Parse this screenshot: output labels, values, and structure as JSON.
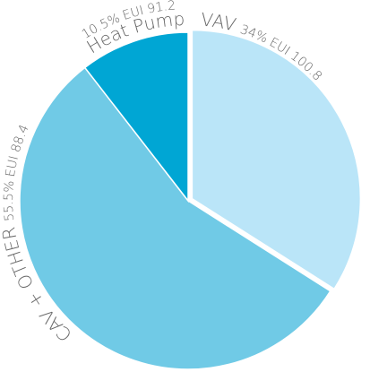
{
  "chart_data": {
    "type": "pie",
    "categories": [
      "VAV",
      "CAV + OTHER",
      "Heat Pump"
    ],
    "values": [
      34,
      55.5,
      10.5
    ],
    "value_labels": [
      "34%",
      "55.5%",
      "10.5%"
    ],
    "eui_labels": [
      "EUI 100.8",
      "EUI 88.4",
      "EUI 91.2"
    ],
    "colors": [
      "#bae5f8",
      "#70cae6",
      "#00a6d4"
    ]
  }
}
